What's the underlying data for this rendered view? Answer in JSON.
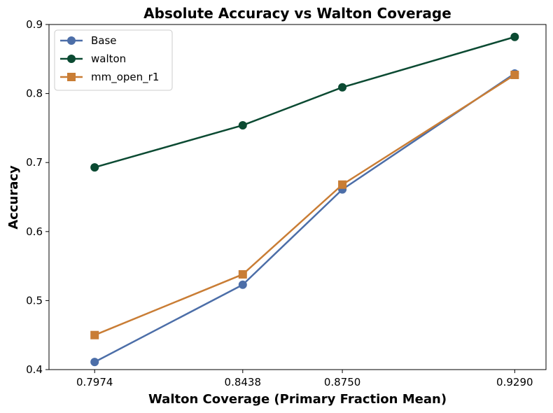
{
  "chart_data": {
    "type": "line",
    "title": "Absolute Accuracy vs Walton Coverage",
    "xlabel": "Walton Coverage (Primary Fraction Mean)",
    "ylabel": "Accuracy",
    "x": [
      0.7974,
      0.8438,
      0.875,
      0.929
    ],
    "x_tick_labels": [
      "0.7974",
      "0.8438",
      "0.8750",
      "0.9290"
    ],
    "xlim": [
      0.7831,
      0.9388
    ],
    "ylim": [
      0.4,
      0.9
    ],
    "y_ticks": [
      0.4,
      0.5,
      0.6,
      0.7,
      0.8,
      0.9
    ],
    "y_tick_labels": [
      "0.4",
      "0.5",
      "0.6",
      "0.7",
      "0.8",
      "0.9"
    ],
    "grid": false,
    "legend_position": "top-left",
    "series": [
      {
        "name": "Base",
        "values": [
          0.411,
          0.523,
          0.661,
          0.829
        ],
        "color": "#4c6ea8",
        "marker": "circle"
      },
      {
        "name": "walton",
        "values": [
          0.693,
          0.754,
          0.809,
          0.882
        ],
        "color": "#0b4a32",
        "marker": "circle"
      },
      {
        "name": "mm_open_r1",
        "values": [
          0.45,
          0.538,
          0.668,
          0.827
        ],
        "color": "#c97d35",
        "marker": "square"
      }
    ]
  }
}
